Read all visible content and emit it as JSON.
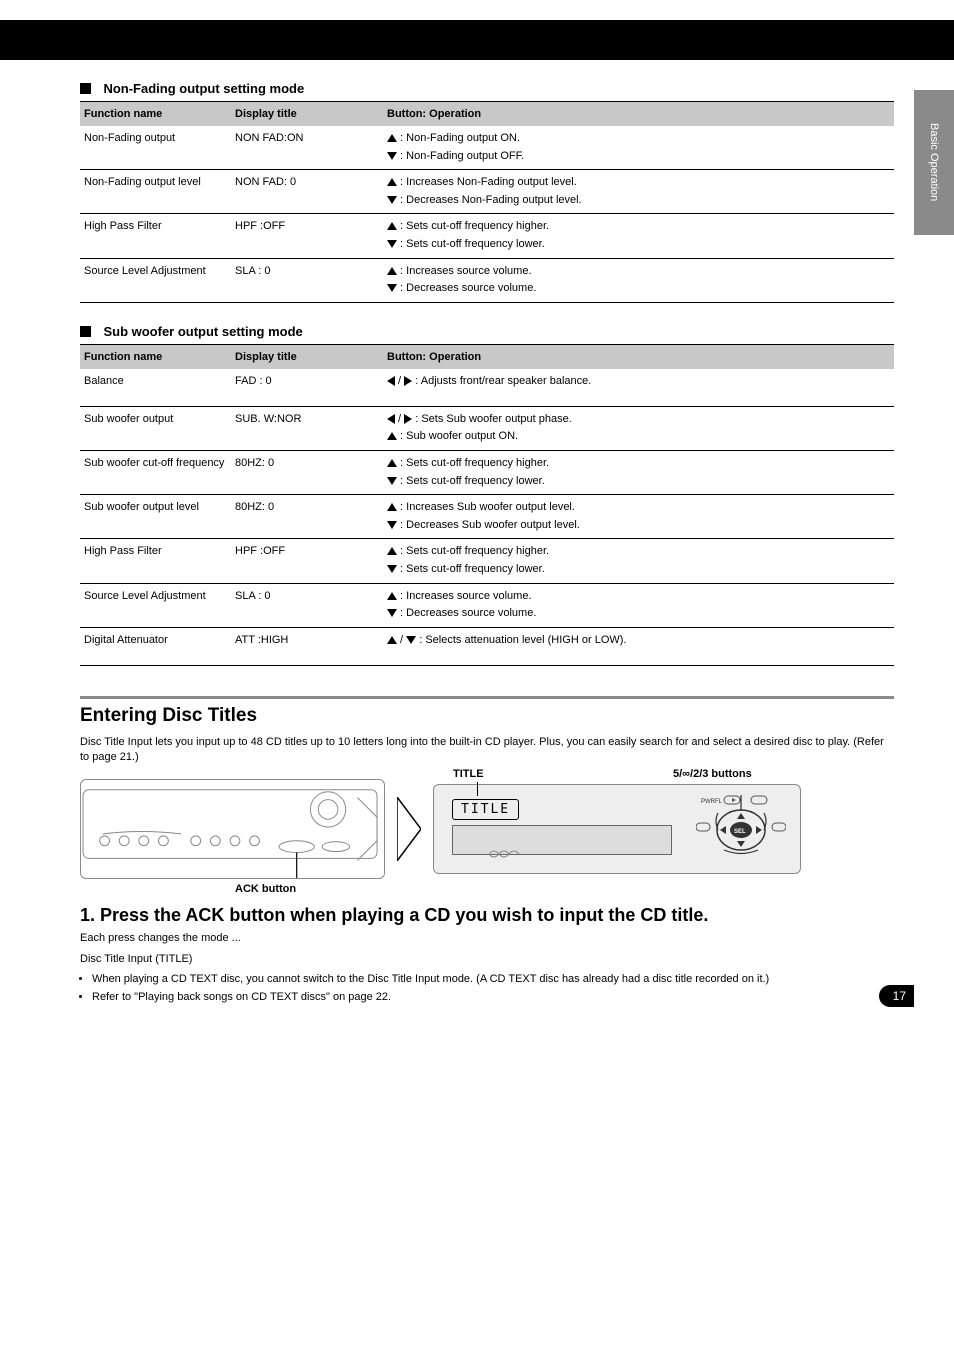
{
  "side_tab": "Basic Operation",
  "non_fading": {
    "title": "Non-Fading output setting mode",
    "header": {
      "name": "Function name",
      "display": "Display title",
      "op": "Button: Operation"
    },
    "rows": [
      {
        "name": "Non-Fading output",
        "display": "NON FAD:ON",
        "up": ": Non-Fading output ON.",
        "down": ": Non-Fading output OFF."
      },
      {
        "name": "Non-Fading output level",
        "display": "NON FAD: 0",
        "up": ": Increases Non-Fading output level.",
        "down": ": Decreases Non-Fading output level."
      },
      {
        "name": "High Pass Filter",
        "display": "HPF :OFF",
        "up": ": Sets cut-off frequency higher.",
        "down": ": Sets cut-off frequency lower."
      },
      {
        "name": "Source Level Adjustment",
        "display": "SLA : 0",
        "up": ": Increases source volume.",
        "down": ": Decreases source volume."
      }
    ]
  },
  "sub_out": {
    "title": "Sub woofer output setting mode",
    "header": {
      "name": "Function name",
      "display": "Display title",
      "op": "Button: Operation"
    },
    "rows": [
      {
        "name": "Balance",
        "display": "FAD : 0",
        "single_lr": "/",
        "single_text": ": Adjusts front/rear speaker balance."
      },
      {
        "name": "Sub woofer output",
        "display": "SUB. W:NOR",
        "lr_text": ": Sets Sub woofer output phase.",
        "up": ": Sub woofer output ON.",
        "down_only": true
      },
      {
        "name": "Sub woofer cut-off frequency",
        "display": "80HZ: 0",
        "up": ": Sets cut-off frequency higher.",
        "down": ": Sets cut-off frequency lower."
      },
      {
        "name": "Sub woofer output level",
        "display": "80HZ: 0",
        "up": ": Increases Sub woofer output level.",
        "down": ": Decreases Sub woofer output level."
      },
      {
        "name": "High Pass Filter",
        "display": "HPF :OFF",
        "up": ": Sets cut-off frequency higher.",
        "down": ": Sets cut-off frequency lower."
      },
      {
        "name": "Source Level Adjustment",
        "display": "SLA : 0",
        "up": ": Increases source volume.",
        "down": ": Decreases source volume."
      },
      {
        "name": "Digital Attenuator",
        "display": "ATT :HIGH",
        "updown_text": ": Selects attenuation level (HIGH or LOW)."
      }
    ]
  },
  "heading": "Entering Disc Titles",
  "intro": "Disc Title Input lets you input up to 48 CD titles up to 10 letters long into the built-in CD player. Plus, you can easily search for and select a desired disc to play. (Refer to page 21.)",
  "legend": {
    "title_btn": "TITLE",
    "buttons": "5/∞/2/3 buttons",
    "ack_btn": "ACK button",
    "lcd_label": "TITLE",
    "pwrfl": "PWRFL"
  },
  "step": {
    "num": "1. Press the ACK button when playing a CD you wish to input the CD title.",
    "note1": "Each press changes the mode ...",
    "note2": "Disc Title Input (TITLE)",
    "note3": "When playing a CD TEXT disc, you cannot switch to the Disc Title Input mode. (A CD TEXT disc has already had a disc title recorded on it.)",
    "note4": "Refer to \"Playing back songs on CD TEXT discs\" on page 22."
  },
  "page_number": "17",
  "colors": {
    "header_bg": "#c8c8c8",
    "side_tab": "#8a8a8a",
    "divider": "#8a8a8a",
    "text": "#000000",
    "page_bg": "#ffffff"
  }
}
